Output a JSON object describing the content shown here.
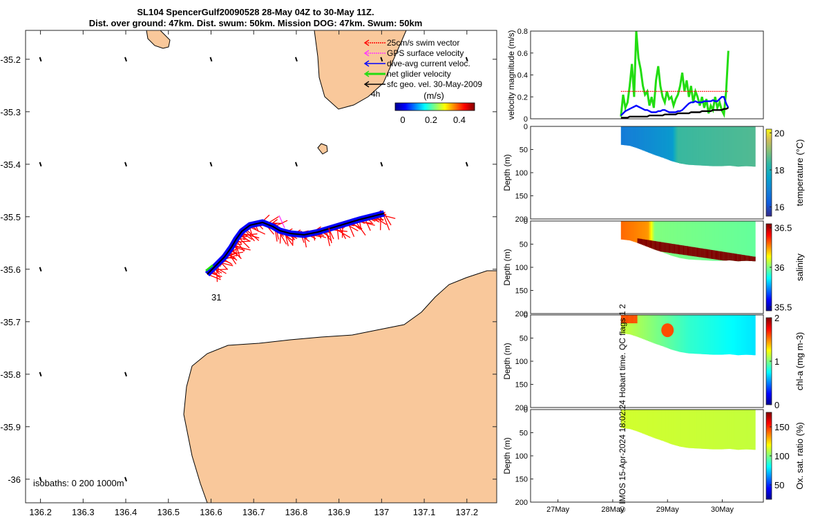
{
  "title_line1": "SL104 SpencerGulf20090528 28-May 04Z to 30-May 11Z.",
  "title_line2": "Dist. over ground: 47km. Dist. swum: 50km. Mission DOG: 47km. Swum: 50km",
  "credit": "© IMOS 15-Apr-2024 18:02:24 Hobart time. QC flags 1  2",
  "colors": {
    "land": "#f9c89b",
    "swim": "#ff0000",
    "gps": "#ff33ff",
    "current": "#0000ff",
    "net": "#22dd11",
    "geo": "#000000"
  },
  "map": {
    "xticks": [
      "136.2",
      "136.3",
      "136.4",
      "136.5",
      "136.6",
      "136.7",
      "136.8",
      "136.9",
      "137",
      "137.1",
      "137.2"
    ],
    "yticks": [
      "-35.2",
      "-35.3",
      "-35.4",
      "-35.5",
      "-35.6",
      "-35.7",
      "-35.8",
      "-35.9",
      "-36"
    ],
    "xlim": [
      136.165,
      137.27
    ],
    "ylim": [
      -36.045,
      -35.145
    ],
    "legend": [
      {
        "label": "25cm/s swim vector",
        "color_key": "swim"
      },
      {
        "label": "GPS surface velocity",
        "color_key": "gps"
      },
      {
        "label": "dive-avg current veloc.",
        "color_key": "current"
      },
      {
        "label": "net glider velocity",
        "color_key": "net"
      },
      {
        "label": "sfc geo. vel. 30-May-2009",
        "color_key": "geo"
      }
    ],
    "time_labels": [
      "4h",
      "31"
    ],
    "colorbar": {
      "label": "(m/s)",
      "ticks": [
        "0",
        "0.2",
        "0.4"
      ],
      "range": [
        0,
        0.5
      ]
    },
    "isobaths_label": "isobaths: 0   200  1000m"
  },
  "chart_data": [
    {
      "type": "line",
      "title": "",
      "ylabel": "velocity magnitude (m/s)",
      "ylim": [
        0,
        0.8
      ],
      "yticks": [
        "0",
        "0.2",
        "0.4",
        "0.6",
        "0.8"
      ],
      "xlim": [
        26.5,
        30.75
      ],
      "x_start": 28.15,
      "x_step": 0.04,
      "series": [
        {
          "name": "net glider velocity",
          "color_key": "net",
          "values": [
            0.02,
            0.22,
            0.1,
            0.15,
            0.3,
            0.5,
            0.2,
            0.8,
            0.55,
            0.45,
            0.3,
            0.22,
            0.25,
            0.12,
            0.2,
            0.1,
            0.35,
            0.48,
            0.3,
            0.2,
            0.15,
            0.25,
            0.18,
            0.2,
            0.12,
            0.18,
            0.22,
            0.3,
            0.42,
            0.25,
            0.35,
            0.2,
            0.3,
            0.15,
            0.25,
            0.2,
            0.12,
            0.2,
            0.1,
            0.18,
            0.05,
            0.12,
            0.08,
            0.2,
            0.1,
            0.15,
            0.08,
            0.04,
            0.25,
            0.62
          ]
        },
        {
          "name": "25cm/s swim vector",
          "color_key": "swim",
          "values": [
            0.25,
            0.25,
            0.25,
            0.25,
            0.25,
            0.25,
            0.25,
            0.25,
            0.25,
            0.25,
            0.25,
            0.25,
            0.25,
            0.25,
            0.25,
            0.25,
            0.25,
            0.25,
            0.25,
            0.25,
            0.25,
            0.25,
            0.25,
            0.25,
            0.25,
            0.25,
            0.25,
            0.25,
            0.25,
            0.25,
            0.25,
            0.25,
            0.25,
            0.25,
            0.25,
            0.25,
            0.25,
            0.25,
            0.25,
            0.25,
            0.25,
            0.25,
            0.25,
            0.25,
            0.25,
            0.25,
            0.25,
            0.25,
            0.25,
            0.25
          ]
        },
        {
          "name": "dive-avg current veloc.",
          "color_key": "current",
          "values": [
            0.03,
            0.05,
            0.07,
            0.08,
            0.09,
            0.1,
            0.11,
            0.12,
            0.11,
            0.1,
            0.09,
            0.08,
            0.08,
            0.07,
            0.06,
            0.06,
            0.06,
            0.07,
            0.07,
            0.08,
            0.08,
            0.07,
            0.06,
            0.06,
            0.06,
            0.06,
            0.07,
            0.07,
            0.08,
            0.1,
            0.12,
            0.14,
            0.15,
            0.15,
            0.16,
            0.15,
            0.15,
            0.15,
            0.16,
            0.16,
            0.16,
            0.16,
            0.17,
            0.16,
            0.16,
            0.18,
            0.2,
            0.2,
            0.14,
            0.1
          ]
        },
        {
          "name": "sfc geo. vel. 30-May-2009",
          "color_key": "geo",
          "values": [
            0.01,
            0.01,
            0.01,
            0.01,
            0.02,
            0.02,
            0.02,
            0.02,
            0.02,
            0.02,
            0.02,
            0.02,
            0.02,
            0.03,
            0.03,
            0.03,
            0.03,
            0.03,
            0.03,
            0.03,
            0.04,
            0.04,
            0.04,
            0.04,
            0.04,
            0.04,
            0.05,
            0.05,
            0.05,
            0.05,
            0.05,
            0.05,
            0.06,
            0.06,
            0.06,
            0.06,
            0.06,
            0.07,
            0.07,
            0.07,
            0.07,
            0.07,
            0.08,
            0.08,
            0.08,
            0.08,
            0.08,
            0.09,
            0.09,
            0.1
          ]
        }
      ]
    },
    {
      "type": "heatmap",
      "variable": "temperature",
      "ylabel": "Depth (m)",
      "cbar_label": "temperature (°C)",
      "yticks": [
        "0",
        "50",
        "100",
        "150",
        "200"
      ],
      "ylim": [
        0,
        200
      ],
      "cbar_ticks": [
        "16",
        "18",
        "20"
      ],
      "crange": [
        15.5,
        20.2
      ],
      "x_start": 28.15,
      "x_end": 30.6,
      "bottom_depth": [
        40,
        42,
        48,
        55,
        62,
        68,
        75,
        80,
        83,
        84,
        85,
        86,
        86,
        85,
        87,
        86,
        87
      ],
      "color_stops": [
        [
          0,
          16.8
        ],
        [
          0.38,
          17.4
        ],
        [
          0.42,
          18.4
        ],
        [
          1,
          18.6
        ]
      ]
    },
    {
      "type": "heatmap",
      "variable": "salinity",
      "ylabel": "Depth (m)",
      "cbar_label": "salinity",
      "yticks": [
        "0",
        "50",
        "100",
        "150",
        "200"
      ],
      "ylim": [
        0,
        200
      ],
      "cbar_ticks": [
        "35.5",
        "36",
        "36.5"
      ],
      "crange": [
        35.45,
        36.55
      ],
      "x_start": 28.15,
      "x_end": 30.6,
      "bottom_depth": [
        40,
        42,
        48,
        55,
        62,
        68,
        75,
        80,
        83,
        84,
        85,
        86,
        86,
        85,
        87,
        86,
        87
      ],
      "color_stops": [
        [
          0,
          36.3
        ],
        [
          0.2,
          36.25
        ],
        [
          0.25,
          36.0
        ],
        [
          1,
          35.97
        ]
      ],
      "deep_layer_value": 36.55
    },
    {
      "type": "heatmap",
      "variable": "chl-a",
      "ylabel": "Depth (m)",
      "cbar_label": "chl-a (mg m-3)",
      "yticks": [
        "0",
        "50",
        "100",
        "150",
        "200"
      ],
      "ylim": [
        0,
        200
      ],
      "cbar_ticks": [
        "0",
        "1",
        "2"
      ],
      "crange": [
        0,
        2
      ],
      "x_start": 28.15,
      "x_end": 30.6,
      "bottom_depth": [
        40,
        42,
        48,
        55,
        62,
        68,
        75,
        80,
        83,
        84,
        85,
        86,
        86,
        85,
        87,
        86,
        87
      ],
      "color_stops": [
        [
          0,
          1.15
        ],
        [
          0.5,
          0.85
        ],
        [
          1,
          0.7
        ]
      ],
      "patch_value": 1.6
    },
    {
      "type": "heatmap",
      "variable": "Ox. sat. ratio",
      "ylabel": "Depth (m)",
      "cbar_label": "Ox. sat. ratio (%)",
      "yticks": [
        "0",
        "50",
        "100",
        "150",
        "200"
      ],
      "ylim": [
        0,
        200
      ],
      "cbar_ticks": [
        "50",
        "100",
        "150"
      ],
      "crange": [
        25,
        175
      ],
      "x_start": 28.15,
      "x_end": 30.6,
      "bottom_depth": [
        40,
        42,
        48,
        55,
        62,
        68,
        75,
        80,
        83,
        84,
        85,
        86,
        86,
        85,
        87,
        86,
        87
      ],
      "color_stops": [
        [
          0,
          112
        ],
        [
          1,
          110
        ]
      ],
      "xticks": [
        {
          "v": 27,
          "label": "27May"
        },
        {
          "v": 28,
          "label": "28May"
        },
        {
          "v": 29,
          "label": "29May"
        },
        {
          "v": 30,
          "label": "30May"
        }
      ],
      "xlim": [
        26.5,
        30.75
      ]
    }
  ]
}
